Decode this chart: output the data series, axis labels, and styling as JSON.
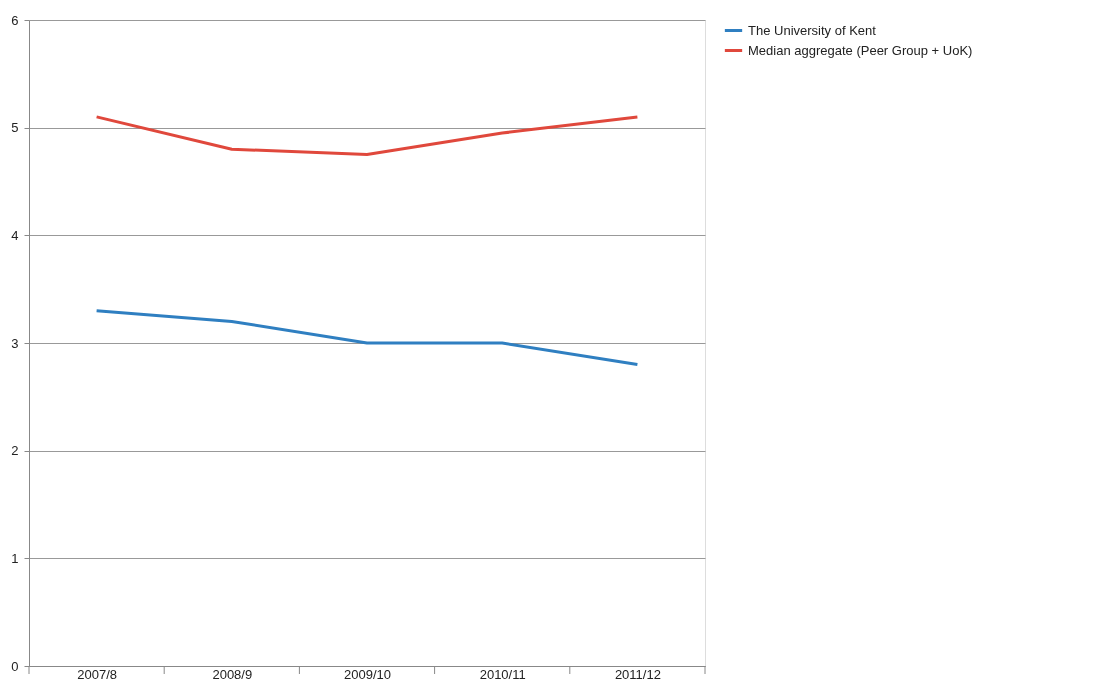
{
  "chart_data": {
    "type": "line",
    "categories": [
      "2007/8",
      "2008/9",
      "2009/10",
      "2010/11",
      "2011/12"
    ],
    "series": [
      {
        "name": "The University of Kent",
        "color": "#2f7fc1",
        "values": [
          3.3,
          3.2,
          3.0,
          3.0,
          2.8
        ]
      },
      {
        "name": "Median aggregate (Peer Group + UoK)",
        "color": "#e0483c",
        "values": [
          5.1,
          4.8,
          4.75,
          4.95,
          5.1
        ]
      }
    ],
    "ylim": [
      0,
      6
    ],
    "yticks": [
      0,
      1,
      2,
      3,
      4,
      5,
      6
    ],
    "grid": "y",
    "legend": "right",
    "marker": "none",
    "line_style": "solid"
  }
}
